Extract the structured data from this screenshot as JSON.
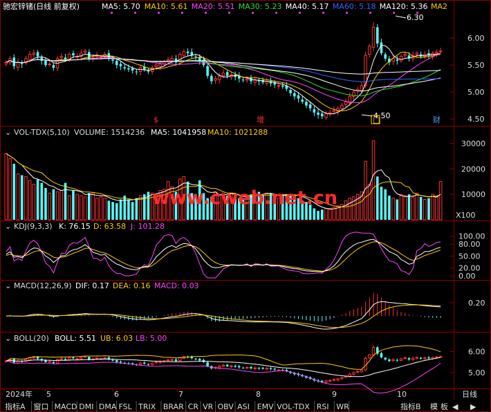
{
  "header": {
    "title": "驰宏锌锗(日线 前复权)",
    "ma": [
      {
        "label": "MA5: 5.70",
        "color": "#ffffff"
      },
      {
        "label": "MA10: 5.61",
        "color": "#ffcc00"
      },
      {
        "label": "MA20: 5.51",
        "color": "#ff44ff"
      },
      {
        "label": "MA30: 5.23",
        "color": "#33dd33"
      },
      {
        "label": "MA40: 5.17",
        "color": "#ffffff"
      },
      {
        "label": "MA60: 5.18",
        "color": "#3366ff"
      },
      {
        "label": "MA120: 5.36",
        "color": "#ffffff"
      },
      {
        "label": "MA2",
        "color": "#ffcc00"
      }
    ]
  },
  "annotations": {
    "high": "6.30",
    "low": "4.50",
    "mark_s": "$",
    "mark_zeng": "增",
    "mark_fang": "□",
    "mark_cai": "财"
  },
  "vol_header": {
    "name": "VOL-TDX(5,10)",
    "volume": "VOLUME: 1514236",
    "ma5": "MA5: 1041958",
    "ma10": "MA10: 1021288"
  },
  "kdj_header": {
    "name": "KDJ(9,3,3)",
    "k": "K: 76.15",
    "d": "D: 63.58",
    "j": "J: 101.28"
  },
  "macd_header": {
    "name": "MACD(12,26,9)",
    "dif": "DIF: 0.17",
    "dea": "DEA: 0.16",
    "macd": "MACD: 0.03"
  },
  "boll_header": {
    "name": "BOLL(20)",
    "boll": "BOLL: 5.51",
    "ub": "UB: 6.03",
    "lb": "LB: 5.00"
  },
  "axis": {
    "price_ticks": [
      "6.00",
      "5.50",
      "5.00",
      "4.50"
    ],
    "vol_ticks": [
      "30000",
      "20000",
      "10000"
    ],
    "vol_unit": "X100",
    "kdj_ticks": [
      "100.00",
      "80.00",
      "50.00",
      "20.00",
      "0.00"
    ],
    "macd_ticks": [
      "0.20"
    ],
    "boll_ticks": [
      "6.00",
      "5.00"
    ],
    "date_labels": [
      "2024年",
      "5",
      "6",
      "7",
      "8",
      "9",
      "10"
    ],
    "period": "日线"
  },
  "watermark": "www.cweb.net.cn",
  "tabs": [
    "指标A",
    "窗口",
    "MACD",
    "DMI",
    "DMA",
    "FSL",
    "TRIX",
    "BRAR",
    "CR",
    "VR",
    "OBV",
    "ASI",
    "EMV",
    "VOL-TDX",
    "RSI",
    "WR"
  ],
  "tabs_right": [
    "指标B",
    "模",
    "板"
  ],
  "chart_data": {
    "type": "candlestick",
    "price_axis": {
      "ylim": [
        4.4,
        6.45
      ],
      "ticks": [
        6.0,
        5.5,
        5.0,
        4.5
      ]
    },
    "close": [
      5.55,
      5.62,
      5.48,
      5.55,
      5.52,
      5.62,
      5.7,
      5.72,
      5.66,
      5.58,
      5.5,
      5.52,
      5.45,
      5.62,
      5.66,
      5.6,
      5.7,
      5.68,
      5.66,
      5.72,
      5.76,
      5.62,
      5.64,
      5.68,
      5.66,
      5.7,
      5.62,
      5.58,
      5.5,
      5.48,
      5.44,
      5.42,
      5.4,
      5.38,
      5.45,
      5.42,
      5.38,
      5.45,
      5.5,
      5.52,
      5.56,
      5.6,
      5.62,
      5.55,
      5.7,
      5.75,
      5.72,
      5.68,
      5.65,
      5.58,
      5.5,
      5.3,
      5.2,
      5.25,
      5.3,
      5.35,
      5.3,
      5.32,
      5.28,
      5.25,
      5.22,
      5.24,
      5.2,
      5.22,
      5.2,
      5.18,
      5.2,
      5.16,
      5.14,
      5.12,
      5.1,
      5.06,
      4.98,
      4.92,
      4.88,
      4.82,
      4.75,
      4.7,
      4.62,
      4.58,
      4.55,
      4.6,
      4.62,
      4.66,
      4.7,
      4.75,
      4.82,
      4.92,
      5.0,
      5.05,
      5.12,
      5.68,
      5.85,
      6.2,
      5.9,
      5.72,
      5.62,
      5.55,
      5.62,
      5.58,
      5.66,
      5.7,
      5.62,
      5.68,
      5.72,
      5.66,
      5.7,
      5.68,
      5.72,
      5.74,
      5.76
    ],
    "high_label": 6.3,
    "low_label": 4.5,
    "volume_axis": {
      "ylim": [
        0,
        32000
      ],
      "ticks": [
        30000,
        20000,
        10000
      ],
      "unit": "X100"
    },
    "volume": [
      26000,
      24000,
      22000,
      18000,
      17500,
      17000,
      15500,
      14000,
      15800,
      14500,
      12500,
      10500,
      12000,
      11000,
      11500,
      14500,
      9500,
      11500,
      10000,
      9500,
      9000,
      10500,
      10500,
      8500,
      9000,
      8500,
      7500,
      7000,
      6500,
      8000,
      9500,
      8000,
      7000,
      8500,
      9500,
      10000,
      11000,
      10500,
      10000,
      11500,
      12000,
      15000,
      13000,
      11000,
      16000,
      17000,
      15000,
      10500,
      10000,
      15500,
      10500,
      8500,
      9000,
      11000,
      10000,
      10500,
      9500,
      10500,
      9500,
      8500,
      8000,
      9000,
      10000,
      10500,
      11000,
      9500,
      10500,
      10500,
      9000,
      8500,
      10000,
      10000,
      10000,
      9500,
      8500,
      7500,
      7000,
      6000,
      4500,
      3500,
      4000,
      4500,
      4500,
      5000,
      5500,
      6000,
      7500,
      8500,
      9000,
      10000,
      11000,
      23000,
      14000,
      31000,
      17000,
      13000,
      12000,
      9500,
      8500,
      8000,
      10000,
      9500,
      10000,
      9000,
      10500,
      9000,
      8000,
      8500,
      10000,
      9000,
      15000
    ],
    "kdj_axis": {
      "ylim": [
        -5,
        110
      ],
      "ticks": [
        100,
        80,
        50,
        20,
        0
      ]
    },
    "kdj": {
      "k": 76.15,
      "d": 63.58,
      "j": 101.28
    },
    "macd": {
      "dif": 0.17,
      "dea": 0.16,
      "macd": 0.03,
      "tick": 0.2
    },
    "boll": {
      "mid": 5.51,
      "ub": 6.03,
      "lb": 5.0,
      "ticks": [
        6.0,
        5.0
      ]
    }
  }
}
